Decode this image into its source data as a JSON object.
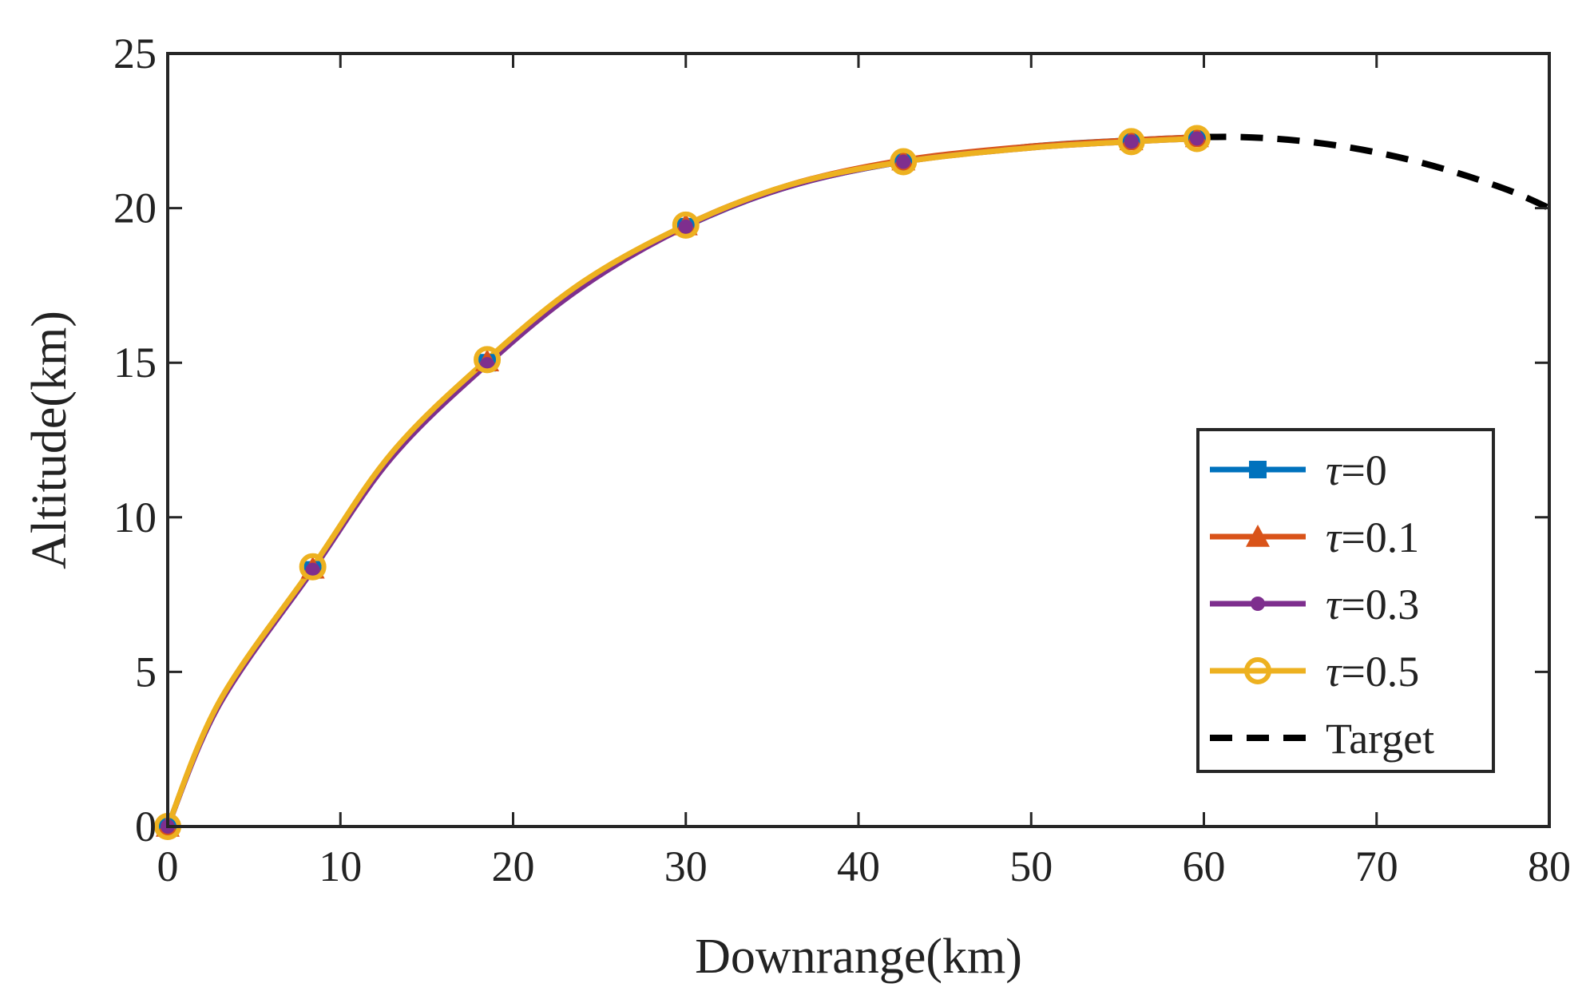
{
  "chart_data": {
    "type": "line",
    "title": "",
    "xlabel": "Downrange(km)",
    "ylabel": "Altitude(km)",
    "xlim": [
      0,
      80
    ],
    "ylim": [
      0,
      25
    ],
    "xticks": [
      0,
      10,
      20,
      30,
      40,
      50,
      60,
      70,
      80
    ],
    "yticks": [
      0,
      5,
      10,
      15,
      20,
      25
    ],
    "xtick_labels": [
      "0",
      "10",
      "20",
      "30",
      "40",
      "50",
      "60",
      "70",
      "80"
    ],
    "ytick_labels": [
      "0",
      "5",
      "10",
      "15",
      "20",
      "25"
    ],
    "grid": false,
    "legend_position": "lower-right",
    "series": [
      {
        "name": "τ=0",
        "legend_symbol": "τ",
        "legend_value": "=0",
        "color": "#0072BD",
        "marker": "square",
        "line": "solid",
        "x": [
          0,
          3,
          8.4,
          13,
          18.5,
          24,
          30,
          36,
          42.6,
          50,
          55.8,
          59.6
        ],
        "y": [
          0,
          4.0,
          8.3,
          12.0,
          15.0,
          17.5,
          19.4,
          20.7,
          21.5,
          22.0,
          22.2,
          22.3
        ],
        "marker_x": [
          0,
          8.4,
          18.5,
          30,
          42.6,
          55.8,
          59.6
        ],
        "marker_y": [
          0,
          8.3,
          15.0,
          19.4,
          21.5,
          22.2,
          22.3
        ]
      },
      {
        "name": "τ=0.1",
        "legend_symbol": "τ",
        "legend_value": "=0.1",
        "color": "#D95319",
        "marker": "triangle",
        "line": "solid",
        "x": [
          0,
          3,
          8.4,
          13,
          18.5,
          24,
          30,
          36,
          42.6,
          50,
          55.8,
          59.6
        ],
        "y": [
          0,
          4.0,
          8.35,
          12.05,
          15.05,
          17.55,
          19.45,
          20.75,
          21.55,
          22.0,
          22.2,
          22.3
        ],
        "marker_x": [
          0,
          8.4,
          18.5,
          30,
          42.6,
          55.8,
          59.6
        ],
        "marker_y": [
          0,
          8.35,
          15.05,
          19.45,
          21.55,
          22.2,
          22.3
        ]
      },
      {
        "name": "τ=0.3",
        "legend_symbol": "τ",
        "legend_value": "=0.3",
        "color": "#7E2F8E",
        "marker": "filled-circle",
        "line": "solid",
        "x": [
          0,
          3,
          8.4,
          13,
          18.5,
          24,
          30,
          36,
          42.6,
          50,
          55.8,
          59.6
        ],
        "y": [
          0,
          3.95,
          8.3,
          11.95,
          14.95,
          17.45,
          19.4,
          20.7,
          21.5,
          21.95,
          22.15,
          22.25
        ],
        "marker_x": [
          0,
          8.4,
          18.5,
          30,
          42.6,
          55.8,
          59.6
        ],
        "marker_y": [
          0,
          8.3,
          14.95,
          19.4,
          21.5,
          22.15,
          22.25
        ]
      },
      {
        "name": "τ=0.5",
        "legend_symbol": "τ",
        "legend_value": "=0.5",
        "color": "#EDB120",
        "marker": "open-circle",
        "line": "solid",
        "x": [
          0,
          3,
          8.4,
          13,
          18.5,
          24,
          30,
          36,
          42.6,
          50,
          55.8,
          59.6
        ],
        "y": [
          0,
          4.05,
          8.4,
          12.1,
          15.1,
          17.6,
          19.45,
          20.75,
          21.5,
          21.95,
          22.15,
          22.25
        ],
        "marker_x": [
          0,
          8.4,
          18.5,
          30,
          42.6,
          55.8,
          59.6
        ],
        "marker_y": [
          0,
          8.4,
          15.1,
          19.45,
          21.5,
          22.15,
          22.25
        ]
      },
      {
        "name": "Target",
        "legend_symbol": "",
        "legend_value": "Target",
        "color": "#000000",
        "marker": "none",
        "line": "dashed",
        "x": [
          60,
          62,
          64,
          66,
          68,
          70,
          72,
          74,
          76,
          78,
          80
        ],
        "y": [
          22.3,
          22.3,
          22.25,
          22.15,
          22.0,
          21.8,
          21.55,
          21.25,
          20.9,
          20.5,
          20.0
        ],
        "marker_x": [],
        "marker_y": []
      }
    ]
  }
}
